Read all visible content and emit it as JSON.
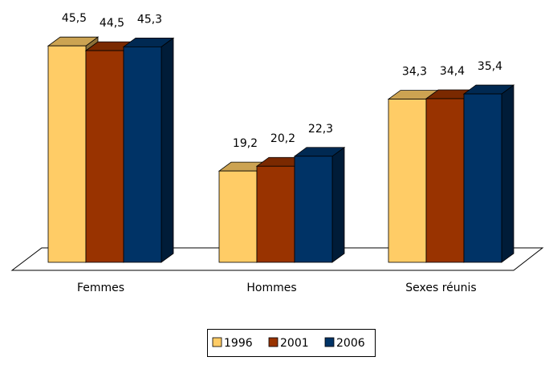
{
  "chart_data": {
    "type": "bar3d",
    "categories": [
      "Femmes",
      "Hommes",
      "Sexes réunis"
    ],
    "series": [
      {
        "name": "1996",
        "color": "#FFCC66",
        "values": [
          45.5,
          19.2,
          34.3
        ],
        "value_labels": [
          "45,5",
          "19,2",
          "34,3"
        ]
      },
      {
        "name": "2001",
        "color": "#993300",
        "values": [
          44.5,
          20.2,
          34.4
        ],
        "value_labels": [
          "44,5",
          "20,2",
          "34,4"
        ]
      },
      {
        "name": "2006",
        "color": "#003366",
        "values": [
          45.3,
          22.3,
          35.4
        ],
        "value_labels": [
          "45,3",
          "22,3",
          "35,4"
        ]
      }
    ]
  }
}
